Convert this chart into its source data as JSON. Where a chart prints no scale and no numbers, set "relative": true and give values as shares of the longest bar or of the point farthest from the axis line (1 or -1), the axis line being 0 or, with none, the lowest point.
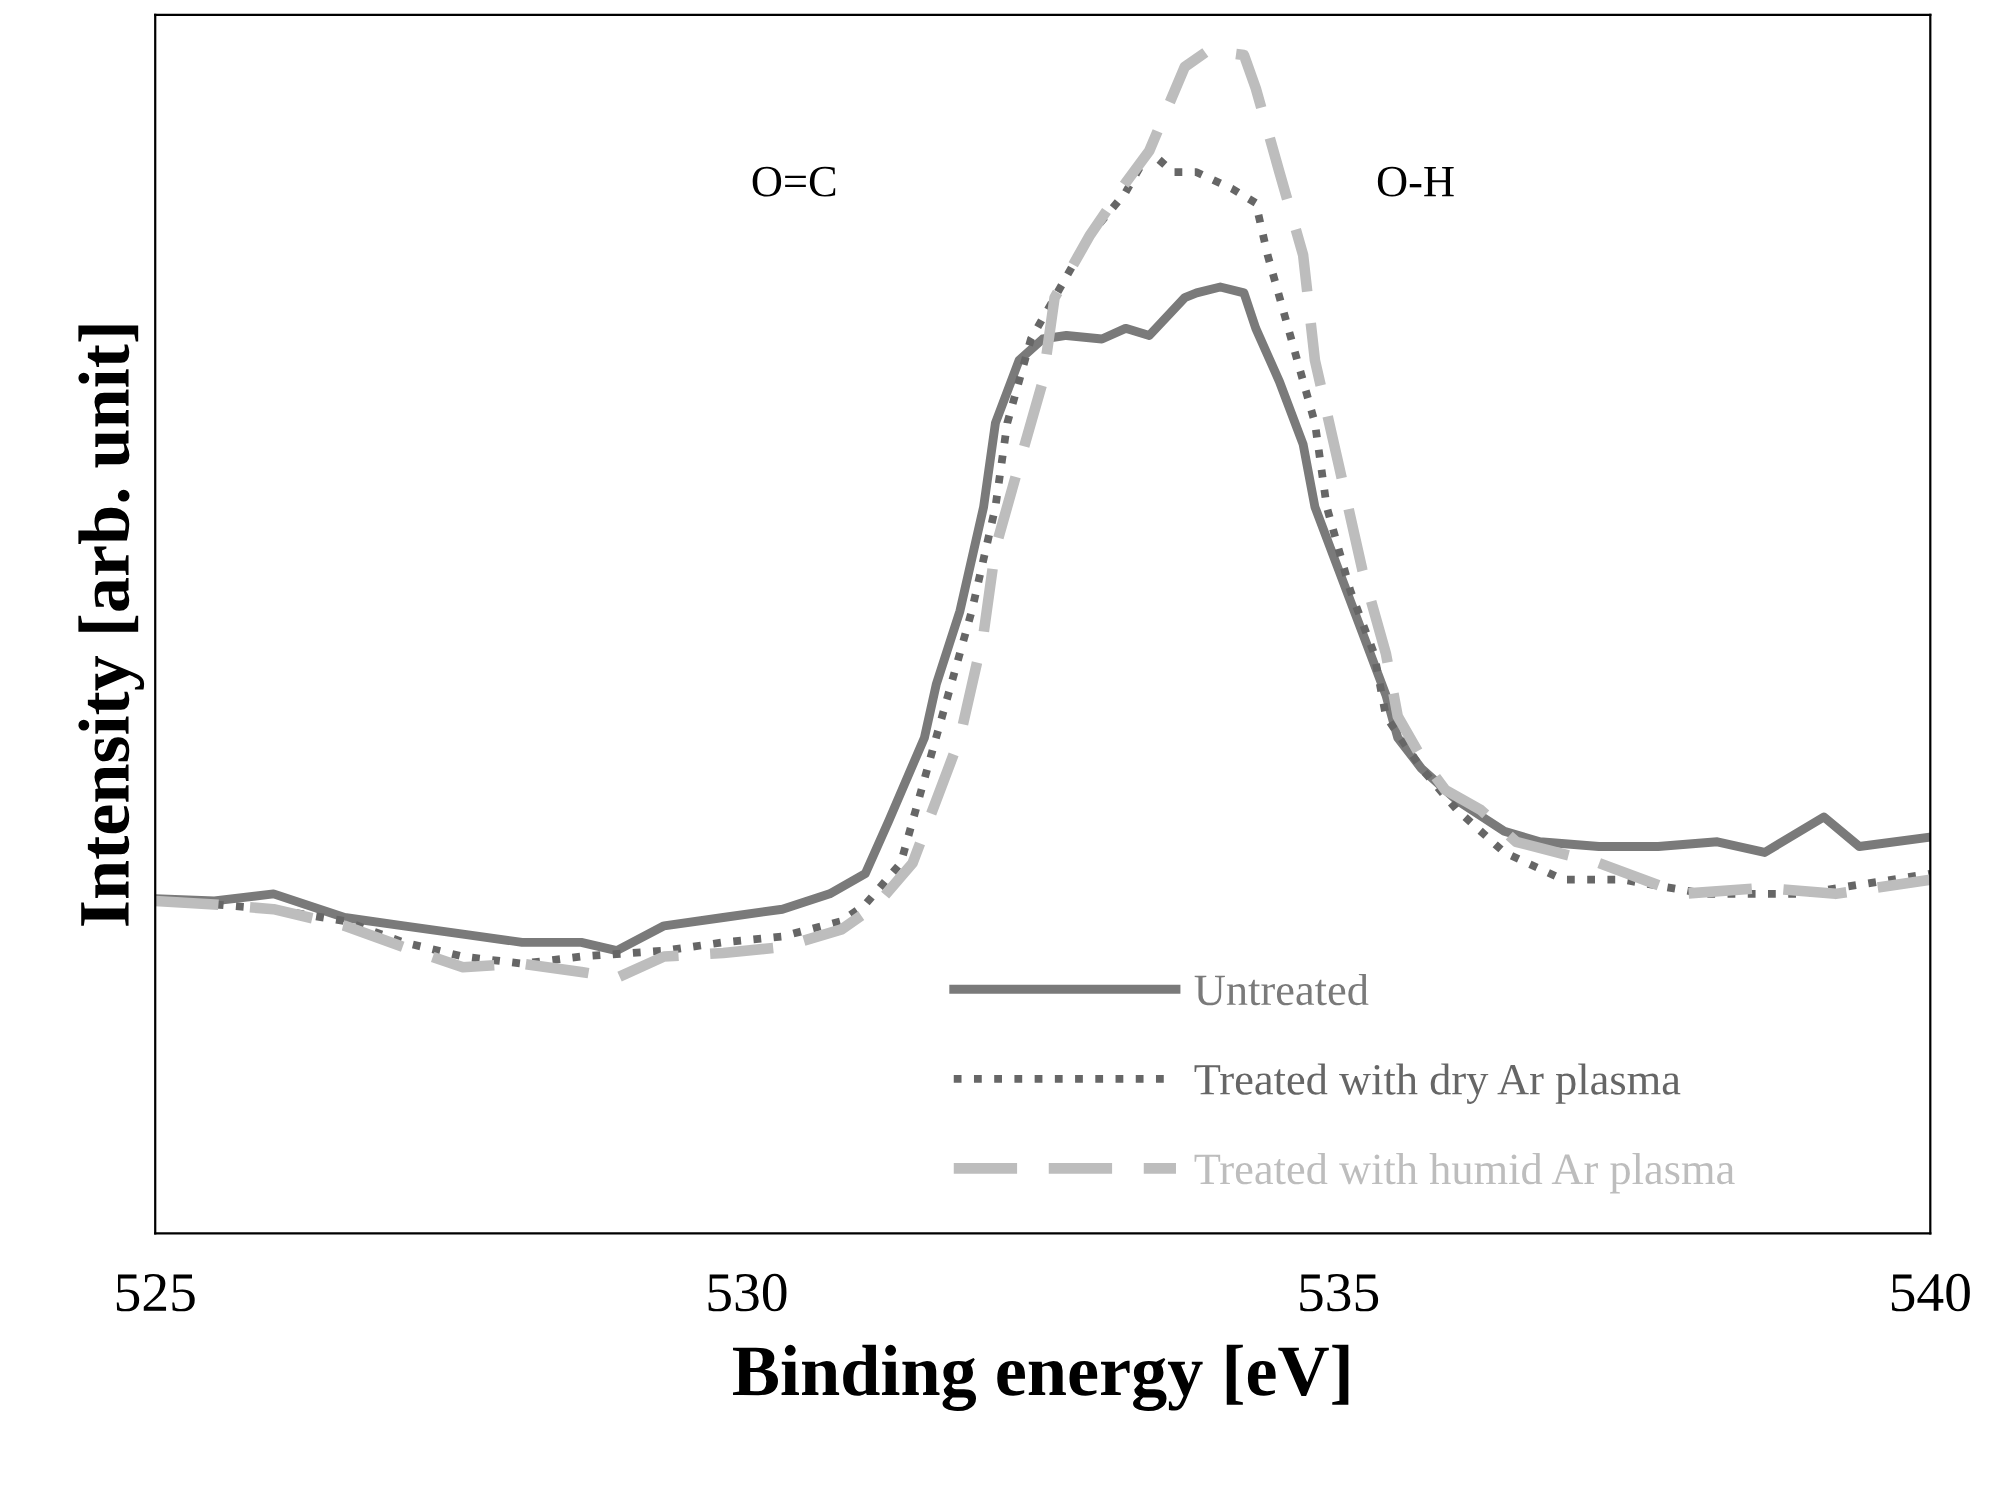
{
  "chart_data": {
    "type": "line",
    "xlabel": "Binding energy [eV]",
    "ylabel": "Intensity [arb. unit]",
    "relative": true,
    "xlim": [
      525,
      540
    ],
    "xticks": [
      525,
      530,
      535,
      540
    ],
    "grid": false,
    "legend": "bottom",
    "annotations": [
      "O=C",
      "O-H"
    ],
    "series": [
      {
        "name": "Untreated",
        "color": "#7a7a7a",
        "line_style": "solid",
        "x": [
          525.0,
          525.5,
          526.0,
          526.6,
          527.1,
          527.6,
          528.1,
          528.6,
          528.9,
          529.3,
          529.8,
          530.3,
          530.7,
          531.0,
          531.2,
          531.5,
          531.6,
          531.8,
          532.0,
          532.1,
          532.3,
          532.5,
          532.7,
          533.0,
          533.2,
          533.4,
          533.7,
          533.8,
          534.0,
          534.2,
          534.3,
          534.5,
          534.7,
          534.8,
          535.0,
          535.2,
          535.4,
          535.5,
          535.7,
          536.0,
          536.4,
          536.7,
          537.2,
          537.7,
          538.2,
          538.6,
          539.1,
          539.4,
          540.0
        ],
        "values": [
          0.283,
          0.281,
          0.287,
          0.267,
          0.26,
          0.253,
          0.246,
          0.246,
          0.239,
          0.26,
          0.267,
          0.274,
          0.287,
          0.304,
          0.349,
          0.419,
          0.464,
          0.526,
          0.614,
          0.685,
          0.738,
          0.756,
          0.759,
          0.756,
          0.765,
          0.759,
          0.791,
          0.795,
          0.8,
          0.795,
          0.765,
          0.72,
          0.667,
          0.614,
          0.561,
          0.508,
          0.455,
          0.419,
          0.393,
          0.366,
          0.34,
          0.331,
          0.327,
          0.327,
          0.331,
          0.322,
          0.352,
          0.327,
          0.335
        ]
      },
      {
        "name": "Treated with dry Ar plasma",
        "color": "#666666",
        "line_style": "dotted",
        "x": [
          525.0,
          525.5,
          526.0,
          526.6,
          527.1,
          527.6,
          528.1,
          528.6,
          529.3,
          529.8,
          530.3,
          530.8,
          531.0,
          531.3,
          531.5,
          531.7,
          531.9,
          532.1,
          532.2,
          532.4,
          532.6,
          532.9,
          533.2,
          533.4,
          533.6,
          533.8,
          534.1,
          534.3,
          534.4,
          534.6,
          534.8,
          534.9,
          535.1,
          535.3,
          535.4,
          535.7,
          536.0,
          536.4,
          536.9,
          537.4,
          538.1,
          538.9,
          540.0
        ],
        "values": [
          0.281,
          0.278,
          0.274,
          0.264,
          0.246,
          0.234,
          0.228,
          0.234,
          0.239,
          0.246,
          0.251,
          0.264,
          0.278,
          0.313,
          0.384,
          0.455,
          0.526,
          0.614,
          0.685,
          0.756,
          0.791,
          0.844,
          0.88,
          0.915,
          0.897,
          0.897,
          0.883,
          0.871,
          0.827,
          0.756,
          0.685,
          0.614,
          0.543,
          0.49,
          0.437,
          0.393,
          0.358,
          0.322,
          0.299,
          0.299,
          0.287,
          0.287,
          0.304
        ]
      },
      {
        "name": "Treated with humid Ar plasma",
        "color": "#bdbdbd",
        "line_style": "dashed",
        "x": [
          525.0,
          525.5,
          526.0,
          526.6,
          527.1,
          527.6,
          528.1,
          528.6,
          528.9,
          529.3,
          529.8,
          530.3,
          530.8,
          531.1,
          531.4,
          531.6,
          531.8,
          532.0,
          532.1,
          532.3,
          532.5,
          532.6,
          532.9,
          533.2,
          533.4,
          533.7,
          533.9,
          534.2,
          534.3,
          534.5,
          534.7,
          534.8,
          535.0,
          535.2,
          535.4,
          535.5,
          535.7,
          535.9,
          536.2,
          536.5,
          537.2,
          537.9,
          538.6,
          539.2,
          540.0
        ],
        "values": [
          0.281,
          0.278,
          0.274,
          0.26,
          0.242,
          0.225,
          0.228,
          0.221,
          0.216,
          0.234,
          0.237,
          0.242,
          0.257,
          0.278,
          0.313,
          0.366,
          0.419,
          0.507,
          0.579,
          0.65,
          0.72,
          0.791,
          0.844,
          0.888,
          0.915,
          0.986,
          1.0,
          0.996,
          0.968,
          0.897,
          0.827,
          0.738,
          0.65,
          0.561,
          0.49,
          0.437,
          0.402,
          0.375,
          0.358,
          0.331,
          0.313,
          0.287,
          0.292,
          0.287,
          0.299
        ]
      }
    ]
  }
}
